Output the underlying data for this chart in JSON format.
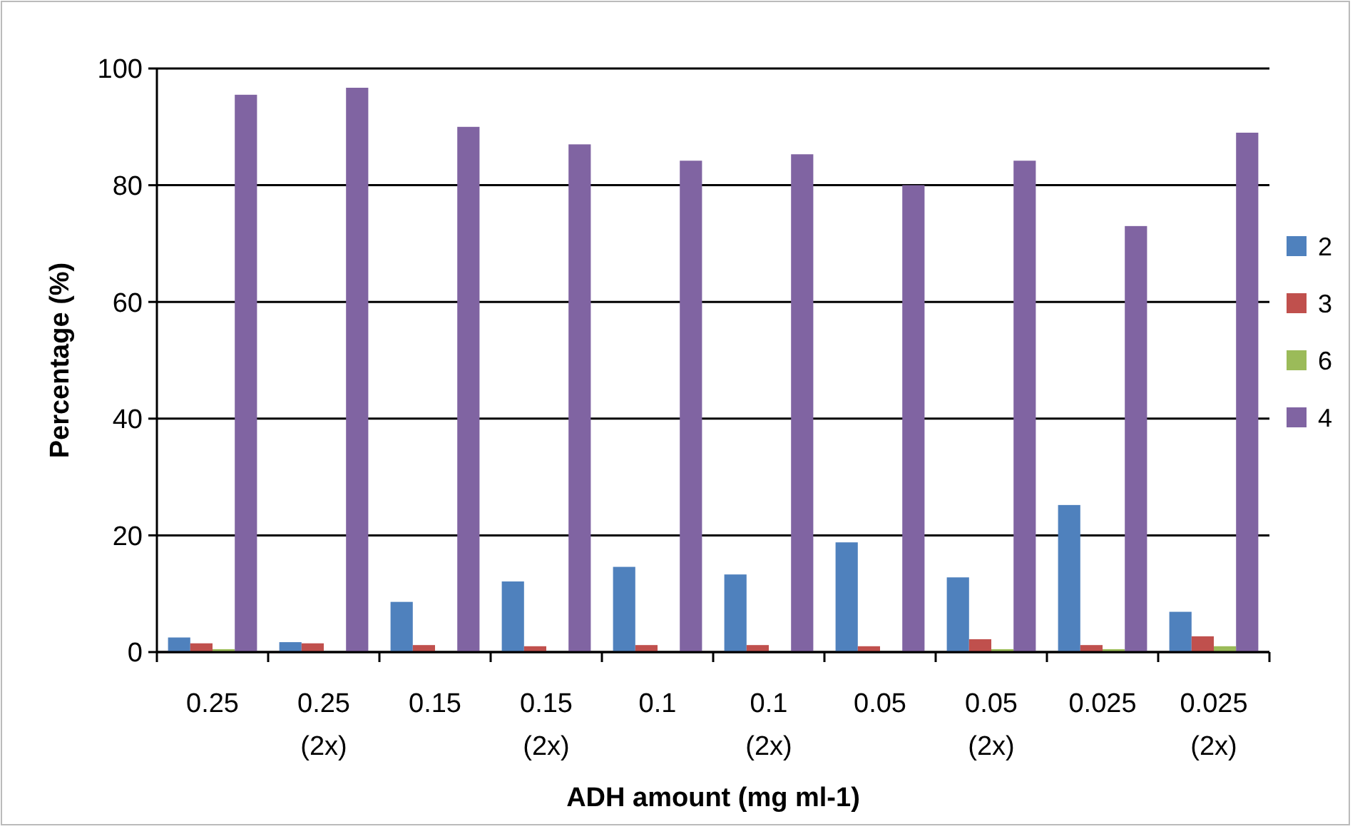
{
  "chart_data": {
    "type": "bar",
    "xlabel": "ADH amount (mg ml-1)",
    "ylabel": "Percentage (%)",
    "categories": [
      "0.25",
      "0.25\n(2x)",
      "0.15",
      "0.15\n(2x)",
      "0.1",
      "0.1\n(2x)",
      "0.05",
      "0.05\n(2x)",
      "0.025",
      "0.025\n(2x)"
    ],
    "series": [
      {
        "name": "2",
        "color": "#4f81bd",
        "values": [
          2.5,
          1.7,
          8.6,
          12.1,
          14.6,
          13.3,
          18.8,
          12.8,
          25.2,
          6.9
        ]
      },
      {
        "name": "3",
        "color": "#c0504d",
        "values": [
          1.5,
          1.5,
          1.2,
          1.0,
          1.2,
          1.2,
          1.0,
          2.2,
          1.2,
          2.7
        ]
      },
      {
        "name": "6",
        "color": "#9bbb59",
        "values": [
          0.5,
          0,
          0,
          0,
          0,
          0,
          0,
          0.5,
          0.5,
          1.0
        ]
      },
      {
        "name": "4",
        "color": "#8064a2",
        "values": [
          95.5,
          96.7,
          90,
          87,
          84.2,
          85.3,
          80,
          84.2,
          73,
          89
        ]
      }
    ],
    "ylim": [
      0,
      100
    ],
    "yticks": [
      0,
      20,
      40,
      60,
      80,
      100
    ],
    "grid": "y",
    "legend": "right"
  }
}
